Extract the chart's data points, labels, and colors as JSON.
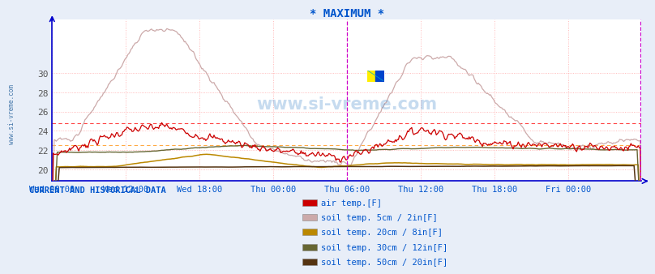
{
  "title": "* MAXIMUM *",
  "title_color": "#0055cc",
  "bg_color": "#e8eef8",
  "plot_bg_color": "#ffffff",
  "grid_color_minor": "#ffaaaa",
  "grid_color_major": "#dddddd",
  "axis_color": "#0000cc",
  "tick_color": "#0055cc",
  "x_tick_labels": [
    "Wed 06:00",
    "Wed 12:00",
    "Wed 18:00",
    "Thu 00:00",
    "Thu 06:00",
    "Thu 12:00",
    "Thu 18:00",
    "Fri 00:00"
  ],
  "x_tick_positions": [
    0,
    72,
    144,
    216,
    288,
    360,
    432,
    504
  ],
  "ylim": [
    18.8,
    35.5
  ],
  "yticks": [
    20,
    22,
    24,
    26,
    28,
    30
  ],
  "n_points": 576,
  "vline_pos": 288,
  "vline_color": "#cc00cc",
  "vline_end_color": "#cc00cc",
  "hline1_y": 24.8,
  "hline1_color": "#ff4444",
  "hline2_y": 22.5,
  "hline2_color": "#ffaa44",
  "watermark": "www.si-vreme.com",
  "legend_title": "CURRENT AND HISTORICAL DATA",
  "legend_items": [
    {
      "label": "air temp.[F]",
      "color": "#cc0000"
    },
    {
      "label": "soil temp. 5cm / 2in[F]",
      "color": "#ccaaaa"
    },
    {
      "label": "soil temp. 20cm / 8in[F]",
      "color": "#bb8800"
    },
    {
      "label": "soil temp. 30cm / 12in[F]",
      "color": "#666633"
    },
    {
      "label": "soil temp. 50cm / 20in[F]",
      "color": "#553311"
    }
  ]
}
